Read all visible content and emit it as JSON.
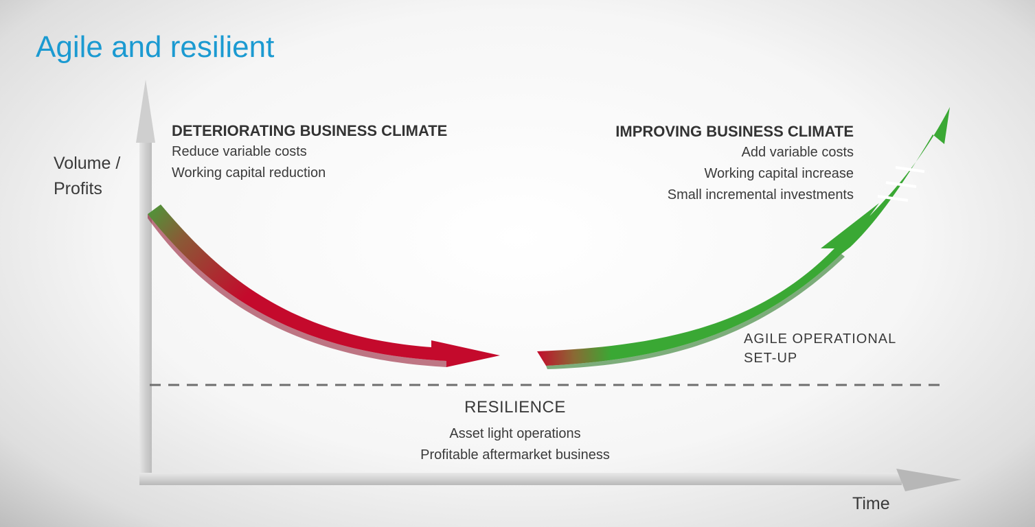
{
  "title": "Agile and resilient",
  "axes": {
    "y_label_line1": "Volume /",
    "y_label_line2": "Profits",
    "x_label": "Time"
  },
  "deteriorating": {
    "heading": "DETERIORATING BUSINESS CLIMATE",
    "items": [
      "Reduce variable costs",
      "Working capital reduction"
    ]
  },
  "improving": {
    "heading": "IMPROVING BUSINESS CLIMATE",
    "items": [
      "Add variable costs",
      "Working capital increase",
      "Small incremental investments"
    ]
  },
  "agile": {
    "line1": "AGILE OPERATIONAL",
    "line2": "SET-UP"
  },
  "resilience": {
    "heading": "RESILIENCE",
    "items": [
      "Asset light operations",
      "Profitable aftermarket business"
    ]
  },
  "colors": {
    "title": "#1b9ad1",
    "decline_arrow": "#c40a2c",
    "growth_arrow": "#3aa834",
    "axis": "#d0d0d0",
    "dashed_line": "#6e6e6e"
  }
}
